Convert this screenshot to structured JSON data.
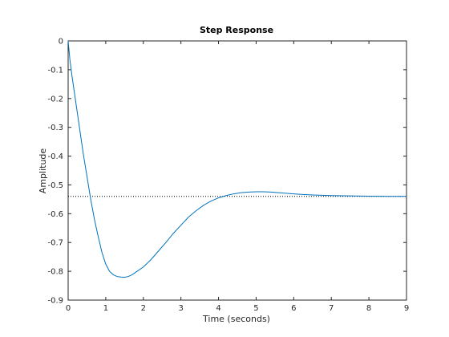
{
  "chart_data": {
    "type": "line",
    "title": "Step Response",
    "xlabel": "Time (seconds)",
    "ylabel": "Amplitude",
    "xlim": [
      0,
      9
    ],
    "ylim": [
      -0.9,
      0
    ],
    "x_ticks": [
      "0",
      "1",
      "2",
      "3",
      "4",
      "5",
      "6",
      "7",
      "8",
      "9"
    ],
    "y_ticks": [
      "0",
      "-0.1",
      "-0.2",
      "-0.3",
      "-0.4",
      "-0.5",
      "-0.6",
      "-0.7",
      "-0.8",
      "-0.9"
    ],
    "grid": false,
    "steady_state": -0.54,
    "series": [
      {
        "color": "#0072bd",
        "x": [
          0,
          0.05,
          0.1,
          0.2,
          0.3,
          0.4,
          0.5,
          0.6,
          0.7,
          0.8,
          0.9,
          1.0,
          1.1,
          1.2,
          1.3,
          1.4,
          1.5,
          1.6,
          1.7,
          1.8,
          2.0,
          2.2,
          2.4,
          2.6,
          2.8,
          3.0,
          3.2,
          3.4,
          3.6,
          3.8,
          4.0,
          4.2,
          4.4,
          4.6,
          4.8,
          5.0,
          5.2,
          5.4,
          5.6,
          5.8,
          6.0,
          6.2,
          6.5,
          7.0,
          7.5,
          8.0,
          8.5,
          9.0
        ],
        "y": [
          0,
          -0.07,
          -0.12,
          -0.21,
          -0.3,
          -0.39,
          -0.47,
          -0.55,
          -0.62,
          -0.68,
          -0.735,
          -0.775,
          -0.8,
          -0.812,
          -0.818,
          -0.82,
          -0.821,
          -0.818,
          -0.812,
          -0.803,
          -0.785,
          -0.76,
          -0.73,
          -0.7,
          -0.668,
          -0.64,
          -0.612,
          -0.59,
          -0.571,
          -0.556,
          -0.545,
          -0.537,
          -0.531,
          -0.527,
          -0.525,
          -0.524,
          -0.524,
          -0.525,
          -0.527,
          -0.529,
          -0.531,
          -0.533,
          -0.535,
          -0.537,
          -0.538,
          -0.539,
          -0.54,
          -0.54
        ]
      }
    ]
  }
}
